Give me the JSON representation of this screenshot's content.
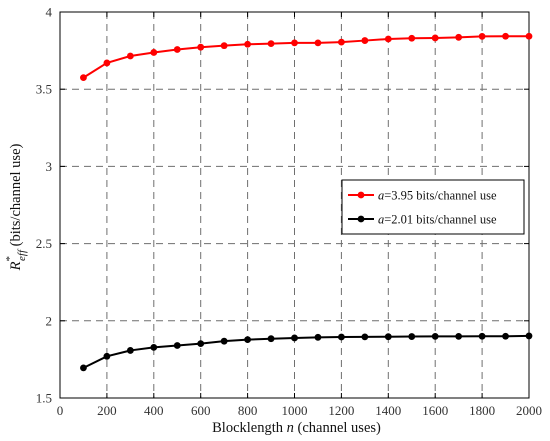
{
  "chart_data": {
    "type": "line",
    "xlabel": {
      "prefix": "Blocklength ",
      "var": "n",
      "suffix": " (channel uses)"
    },
    "ylabel": {
      "base": "R",
      "sup": "*",
      "sub": "eff",
      "suffix": " (bits/channel use)"
    },
    "xlim": [
      0,
      2000
    ],
    "ylim": [
      1.5,
      4
    ],
    "xticks": [
      0,
      200,
      400,
      600,
      800,
      1000,
      1200,
      1400,
      1600,
      1800,
      2000
    ],
    "yticks": [
      1.5,
      2,
      2.5,
      3,
      3.5,
      4
    ],
    "ytick_labels": [
      "1.5",
      "2",
      "2.5",
      "3",
      "3.5",
      "4"
    ],
    "grid": true,
    "legend_position": "middle-right",
    "x": [
      100,
      200,
      300,
      400,
      500,
      600,
      700,
      800,
      900,
      1000,
      1100,
      1200,
      1300,
      1400,
      1500,
      1600,
      1700,
      1800,
      1900,
      2000
    ],
    "series": [
      {
        "name": "=3.95 bits/channel use",
        "name_var": "a",
        "color": "#ff0000",
        "values": [
          3.575,
          3.67,
          3.715,
          3.738,
          3.757,
          3.772,
          3.782,
          3.791,
          3.795,
          3.8,
          3.8,
          3.805,
          3.815,
          3.825,
          3.83,
          3.832,
          3.836,
          3.842,
          3.843,
          3.843
        ]
      },
      {
        "name": "=2.01 bits/channel use",
        "name_var": "a",
        "color": "#000000",
        "values": [
          1.695,
          1.77,
          1.808,
          1.828,
          1.84,
          1.852,
          1.868,
          1.878,
          1.884,
          1.889,
          1.893,
          1.895,
          1.896,
          1.897,
          1.898,
          1.899,
          1.899,
          1.9,
          1.9,
          1.902
        ]
      }
    ]
  }
}
